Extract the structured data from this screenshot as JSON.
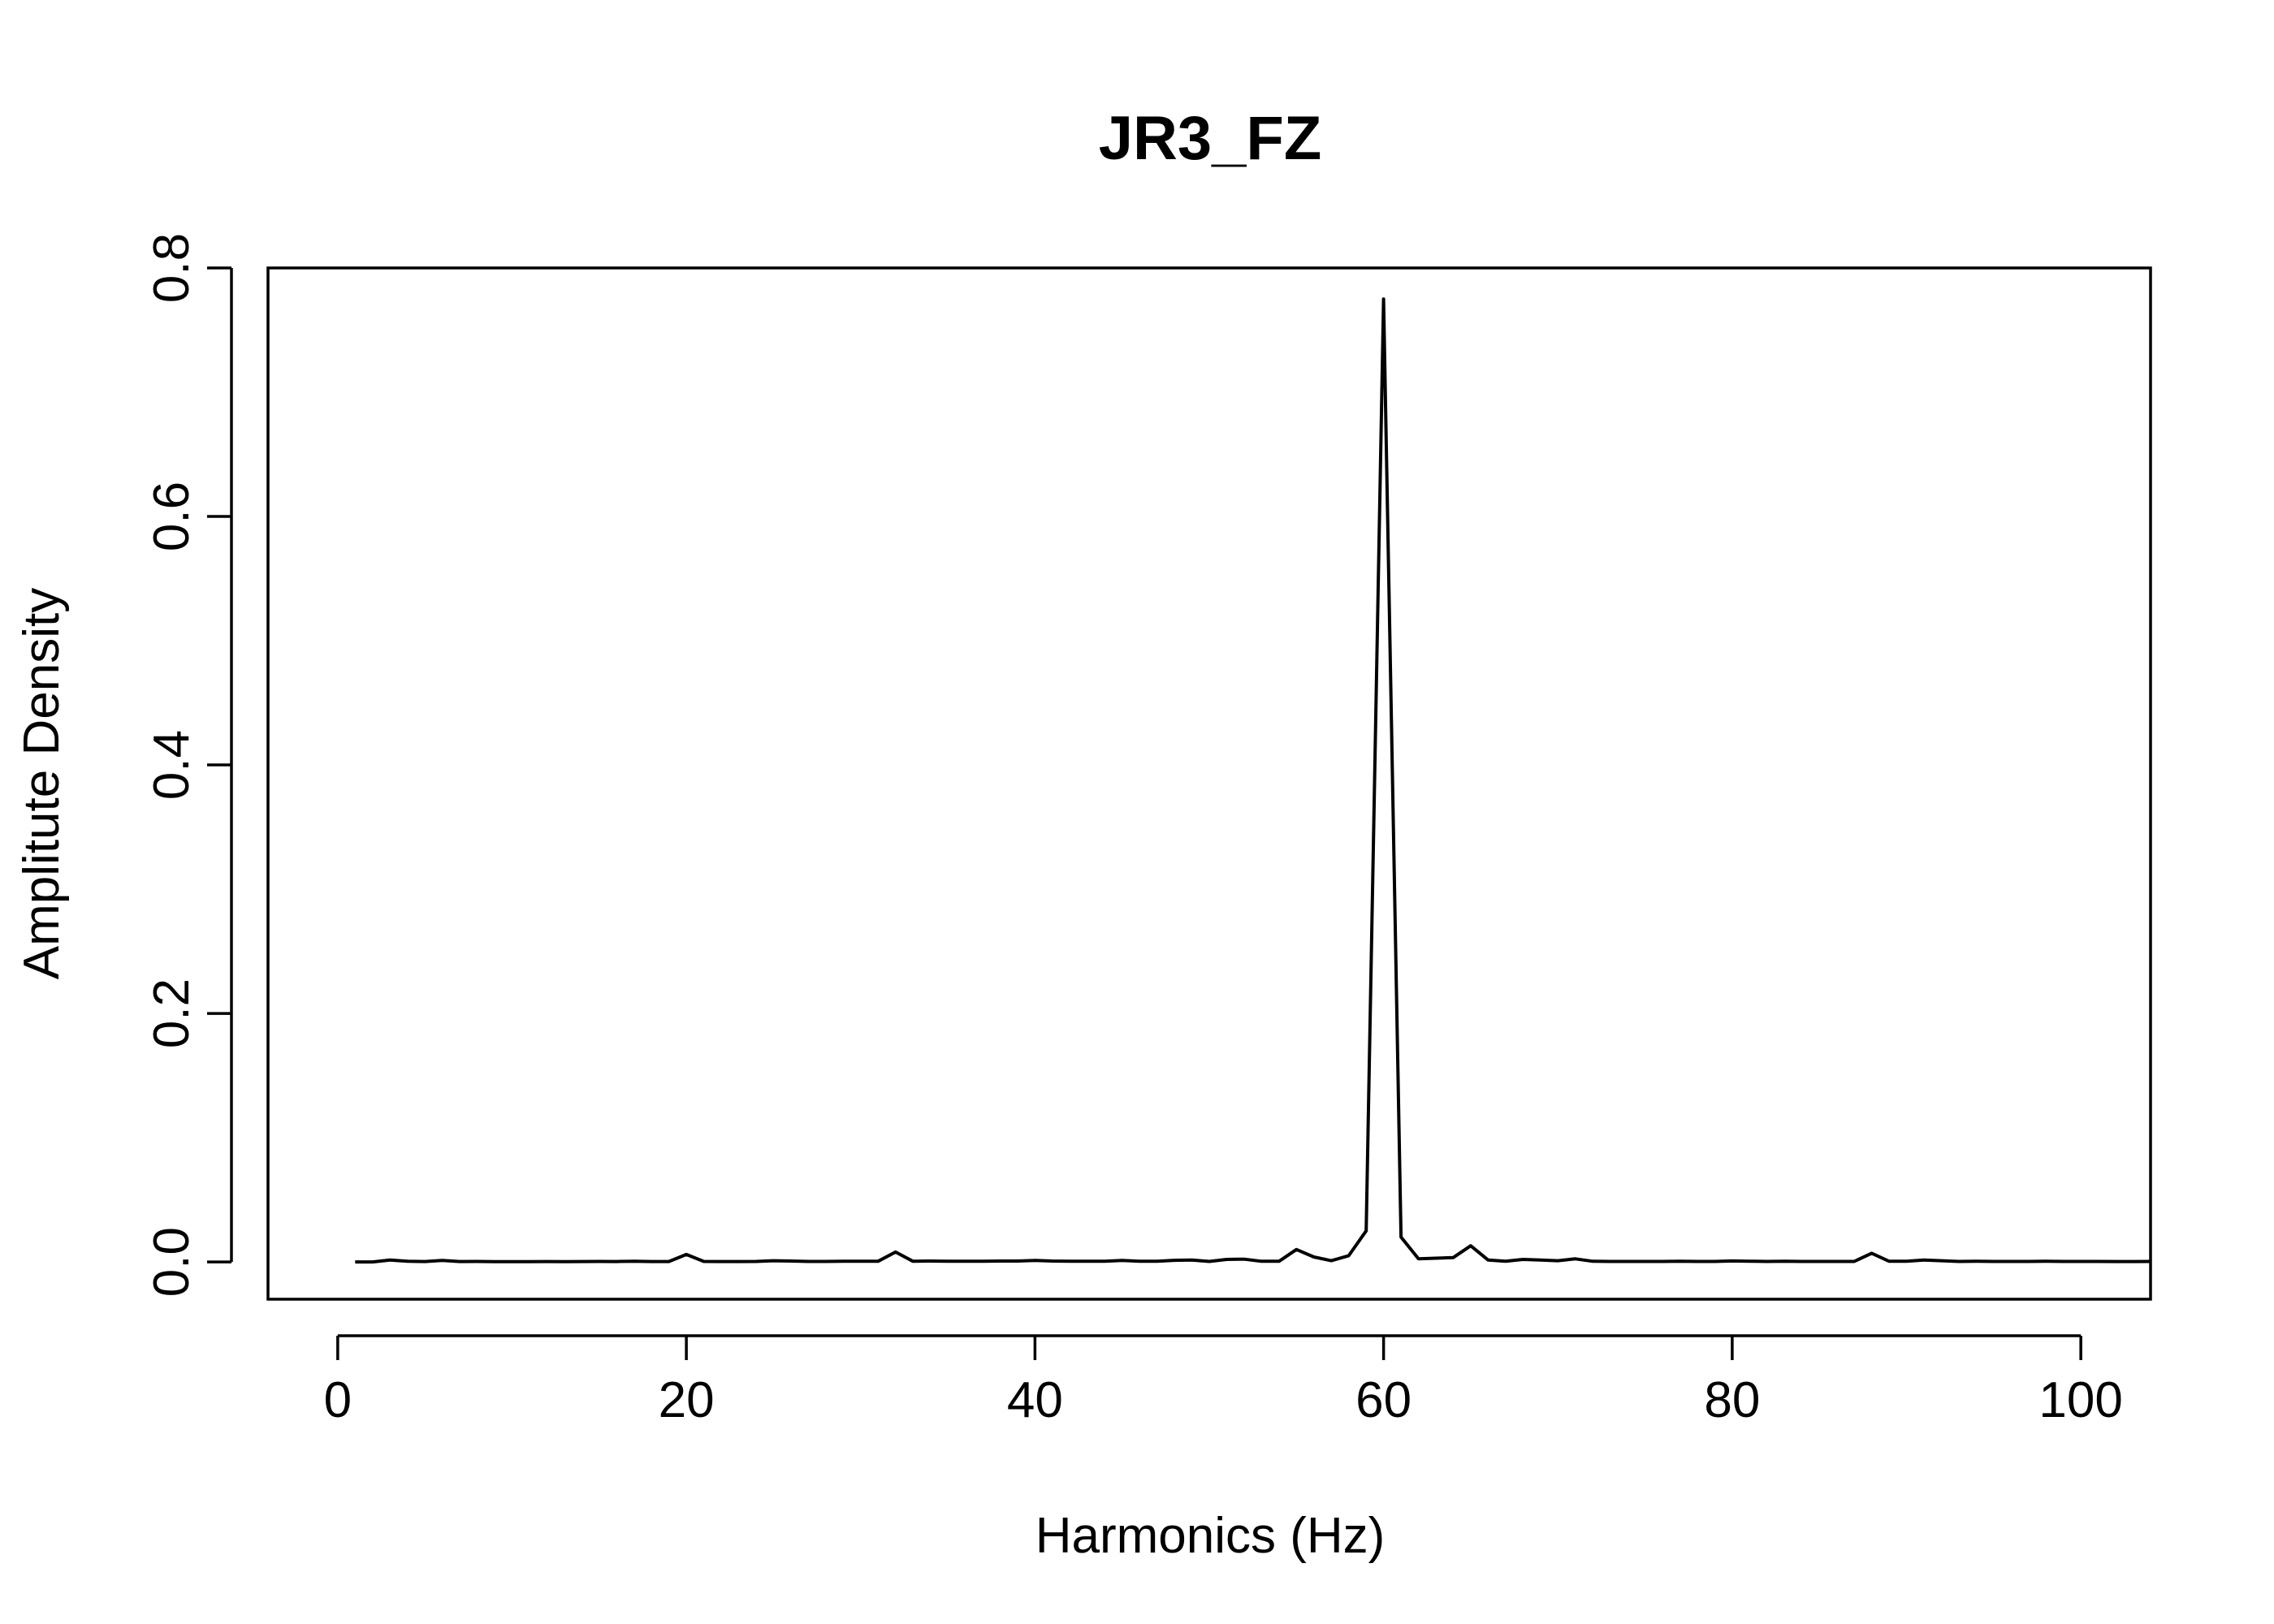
{
  "chart_data": {
    "type": "line",
    "title": "JR3_FZ",
    "xlabel": "Harmonics (Hz)",
    "ylabel": "Amplitute Density",
    "xlim": [
      -4,
      104
    ],
    "ylim": [
      -0.03,
      0.8
    ],
    "x_ticks": [
      0,
      20,
      40,
      60,
      80,
      100
    ],
    "x_tick_labels": [
      "0",
      "20",
      "40",
      "60",
      "80",
      "100"
    ],
    "y_ticks": [
      0.0,
      0.2,
      0.4,
      0.6,
      0.8
    ],
    "y_tick_labels": [
      "0.0",
      "0.2",
      "0.4",
      "0.6",
      "0.8"
    ],
    "grid": false,
    "legend": "none",
    "line_color": "#000000",
    "series": [
      {
        "x": [
          1,
          2,
          3,
          4,
          5,
          6,
          7,
          8,
          9,
          10,
          11,
          12,
          13,
          14,
          15,
          16,
          17,
          18,
          19,
          20,
          21,
          22,
          23,
          24,
          25,
          26,
          27,
          28,
          29,
          30,
          31,
          32,
          33,
          34,
          35,
          36,
          37,
          38,
          39,
          40,
          41,
          42,
          43,
          44,
          45,
          46,
          47,
          48,
          49,
          50,
          51,
          52,
          53,
          54,
          55,
          56,
          57,
          58,
          59,
          60,
          61,
          62,
          63,
          64,
          65,
          66,
          67,
          68,
          69,
          70,
          71,
          72,
          73,
          74,
          75,
          76,
          77,
          78,
          79,
          80,
          81,
          82,
          83,
          84,
          85,
          86,
          87,
          88,
          89,
          90,
          91,
          92,
          93,
          94,
          95,
          96,
          97,
          98,
          99,
          100,
          101,
          102,
          103,
          104
        ],
        "values": [
          0.0,
          0.0,
          0.0015,
          0.0005,
          0.0003,
          0.0012,
          0.0003,
          0.0004,
          0.0002,
          0.0002,
          0.0002,
          0.0003,
          0.0002,
          0.0003,
          0.0004,
          0.0003,
          0.0005,
          0.0003,
          0.0003,
          0.006,
          0.0004,
          0.0003,
          0.0003,
          0.0004,
          0.001,
          0.0007,
          0.0004,
          0.0004,
          0.0006,
          0.0005,
          0.0005,
          0.008,
          0.0005,
          0.0007,
          0.0006,
          0.0006,
          0.0005,
          0.0007,
          0.0007,
          0.0012,
          0.0007,
          0.0006,
          0.0005,
          0.0005,
          0.0012,
          0.0006,
          0.0005,
          0.0013,
          0.0015,
          0.0004,
          0.002,
          0.0022,
          0.0005,
          0.0005,
          0.01,
          0.004,
          0.001,
          0.005,
          0.025,
          0.775,
          0.02,
          0.0025,
          0.003,
          0.0035,
          0.013,
          0.0015,
          0.0005,
          0.002,
          0.0015,
          0.001,
          0.0025,
          0.0005,
          0.0004,
          0.0004,
          0.0004,
          0.0004,
          0.0006,
          0.0004,
          0.0004,
          0.0008,
          0.0006,
          0.0004,
          0.0006,
          0.0004,
          0.0004,
          0.0004,
          0.0004,
          0.007,
          0.0005,
          0.0005,
          0.0015,
          0.001,
          0.0004,
          0.0005,
          0.0004,
          0.0004,
          0.0004,
          0.0005,
          0.0004,
          0.0004,
          0.0004,
          0.0003,
          0.0003,
          0.0004
        ]
      }
    ]
  }
}
